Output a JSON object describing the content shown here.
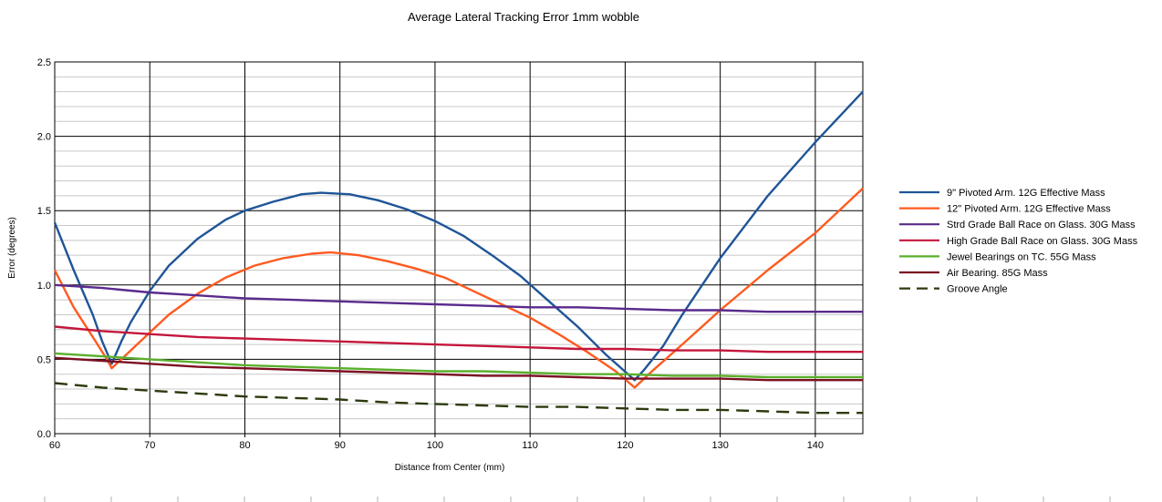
{
  "chart_data": {
    "type": "line",
    "title": "Average Lateral Tracking Error 1mm wobble",
    "xlabel": "Distance from Center (mm)",
    "ylabel": "Error (degrees)",
    "xlim": [
      60,
      145
    ],
    "ylim": [
      0,
      2.5
    ],
    "x_ticks": [
      "60",
      "70",
      "80",
      "90",
      "100",
      "110",
      "120",
      "130",
      "140"
    ],
    "y_ticks": [
      "0.0",
      "0.5",
      "1.0",
      "1.5",
      "2.0",
      "2.5"
    ],
    "grid": true,
    "legend_position": "right",
    "series": [
      {
        "name": "9\" Pivoted Arm. 12G Effective Mass",
        "color": "#1f5597",
        "dash": false,
        "points": [
          [
            60,
            1.42
          ],
          [
            62,
            1.1
          ],
          [
            64,
            0.8
          ],
          [
            65,
            0.62
          ],
          [
            66,
            0.47
          ],
          [
            67,
            0.62
          ],
          [
            68,
            0.75
          ],
          [
            70,
            0.96
          ],
          [
            72,
            1.13
          ],
          [
            75,
            1.31
          ],
          [
            78,
            1.44
          ],
          [
            80,
            1.5
          ],
          [
            83,
            1.56
          ],
          [
            86,
            1.61
          ],
          [
            88,
            1.62
          ],
          [
            91,
            1.61
          ],
          [
            94,
            1.57
          ],
          [
            97,
            1.51
          ],
          [
            100,
            1.43
          ],
          [
            103,
            1.33
          ],
          [
            106,
            1.2
          ],
          [
            109,
            1.06
          ],
          [
            112,
            0.89
          ],
          [
            115,
            0.72
          ],
          [
            118,
            0.53
          ],
          [
            121,
            0.36
          ],
          [
            122,
            0.43
          ],
          [
            124,
            0.59
          ],
          [
            126,
            0.8
          ],
          [
            130,
            1.18
          ],
          [
            135,
            1.6
          ],
          [
            140,
            1.96
          ],
          [
            145,
            2.3
          ]
        ]
      },
      {
        "name": "12\" Pivoted Arm. 12G Effective Mass",
        "color": "#ff5a1f",
        "dash": false,
        "points": [
          [
            60,
            1.1
          ],
          [
            62,
            0.85
          ],
          [
            64,
            0.65
          ],
          [
            65.5,
            0.5
          ],
          [
            66,
            0.44
          ],
          [
            67,
            0.5
          ],
          [
            68,
            0.56
          ],
          [
            70,
            0.68
          ],
          [
            72,
            0.8
          ],
          [
            75,
            0.94
          ],
          [
            78,
            1.05
          ],
          [
            81,
            1.13
          ],
          [
            84,
            1.18
          ],
          [
            87,
            1.21
          ],
          [
            89,
            1.22
          ],
          [
            92,
            1.2
          ],
          [
            95,
            1.16
          ],
          [
            98,
            1.11
          ],
          [
            101,
            1.05
          ],
          [
            104,
            0.96
          ],
          [
            107,
            0.87
          ],
          [
            110,
            0.78
          ],
          [
            113,
            0.67
          ],
          [
            116,
            0.55
          ],
          [
            119,
            0.42
          ],
          [
            121,
            0.31
          ],
          [
            123,
            0.43
          ],
          [
            126,
            0.6
          ],
          [
            130,
            0.83
          ],
          [
            135,
            1.1
          ],
          [
            140,
            1.35
          ],
          [
            145,
            1.65
          ]
        ]
      },
      {
        "name": "Strd Grade Ball Race on Glass. 30G Mass",
        "color": "#5a2a8c",
        "dash": false,
        "points": [
          [
            60,
            1.0
          ],
          [
            65,
            0.98
          ],
          [
            70,
            0.95
          ],
          [
            75,
            0.93
          ],
          [
            80,
            0.91
          ],
          [
            85,
            0.9
          ],
          [
            90,
            0.89
          ],
          [
            95,
            0.88
          ],
          [
            100,
            0.87
          ],
          [
            105,
            0.86
          ],
          [
            110,
            0.85
          ],
          [
            115,
            0.85
          ],
          [
            120,
            0.84
          ],
          [
            125,
            0.83
          ],
          [
            130,
            0.83
          ],
          [
            135,
            0.82
          ],
          [
            140,
            0.82
          ],
          [
            145,
            0.82
          ]
        ]
      },
      {
        "name": "High Grade Ball Race on Glass. 30G Mass",
        "color": "#c4163c",
        "dash": false,
        "points": [
          [
            60,
            0.72
          ],
          [
            65,
            0.69
          ],
          [
            70,
            0.67
          ],
          [
            75,
            0.65
          ],
          [
            80,
            0.64
          ],
          [
            85,
            0.63
          ],
          [
            90,
            0.62
          ],
          [
            95,
            0.61
          ],
          [
            100,
            0.6
          ],
          [
            105,
            0.59
          ],
          [
            110,
            0.58
          ],
          [
            115,
            0.57
          ],
          [
            120,
            0.57
          ],
          [
            125,
            0.56
          ],
          [
            130,
            0.56
          ],
          [
            135,
            0.55
          ],
          [
            140,
            0.55
          ],
          [
            145,
            0.55
          ]
        ]
      },
      {
        "name": "Jewel Bearings on TC. 55G Mass",
        "color": "#5aaf2c",
        "dash": false,
        "points": [
          [
            60,
            0.54
          ],
          [
            65,
            0.52
          ],
          [
            70,
            0.5
          ],
          [
            75,
            0.48
          ],
          [
            80,
            0.46
          ],
          [
            85,
            0.45
          ],
          [
            90,
            0.44
          ],
          [
            95,
            0.43
          ],
          [
            100,
            0.42
          ],
          [
            105,
            0.42
          ],
          [
            110,
            0.41
          ],
          [
            115,
            0.4
          ],
          [
            120,
            0.4
          ],
          [
            125,
            0.39
          ],
          [
            130,
            0.39
          ],
          [
            135,
            0.38
          ],
          [
            140,
            0.38
          ],
          [
            145,
            0.38
          ]
        ]
      },
      {
        "name": "Air Bearing. 85G Mass",
        "color": "#7b0f22",
        "dash": false,
        "points": [
          [
            60,
            0.51
          ],
          [
            65,
            0.49
          ],
          [
            70,
            0.47
          ],
          [
            75,
            0.45
          ],
          [
            80,
            0.44
          ],
          [
            85,
            0.43
          ],
          [
            90,
            0.42
          ],
          [
            95,
            0.41
          ],
          [
            100,
            0.4
          ],
          [
            105,
            0.39
          ],
          [
            110,
            0.39
          ],
          [
            115,
            0.38
          ],
          [
            120,
            0.37
          ],
          [
            125,
            0.37
          ],
          [
            130,
            0.37
          ],
          [
            135,
            0.36
          ],
          [
            140,
            0.36
          ],
          [
            145,
            0.36
          ]
        ]
      },
      {
        "name": "Groove Angle",
        "color": "#2c3a0e",
        "dash": true,
        "points": [
          [
            60,
            0.34
          ],
          [
            65,
            0.31
          ],
          [
            70,
            0.29
          ],
          [
            75,
            0.27
          ],
          [
            80,
            0.25
          ],
          [
            85,
            0.24
          ],
          [
            90,
            0.23
          ],
          [
            95,
            0.21
          ],
          [
            100,
            0.2
          ],
          [
            105,
            0.19
          ],
          [
            110,
            0.18
          ],
          [
            115,
            0.18
          ],
          [
            120,
            0.17
          ],
          [
            125,
            0.16
          ],
          [
            130,
            0.16
          ],
          [
            135,
            0.15
          ],
          [
            140,
            0.14
          ],
          [
            145,
            0.14
          ]
        ]
      }
    ]
  }
}
